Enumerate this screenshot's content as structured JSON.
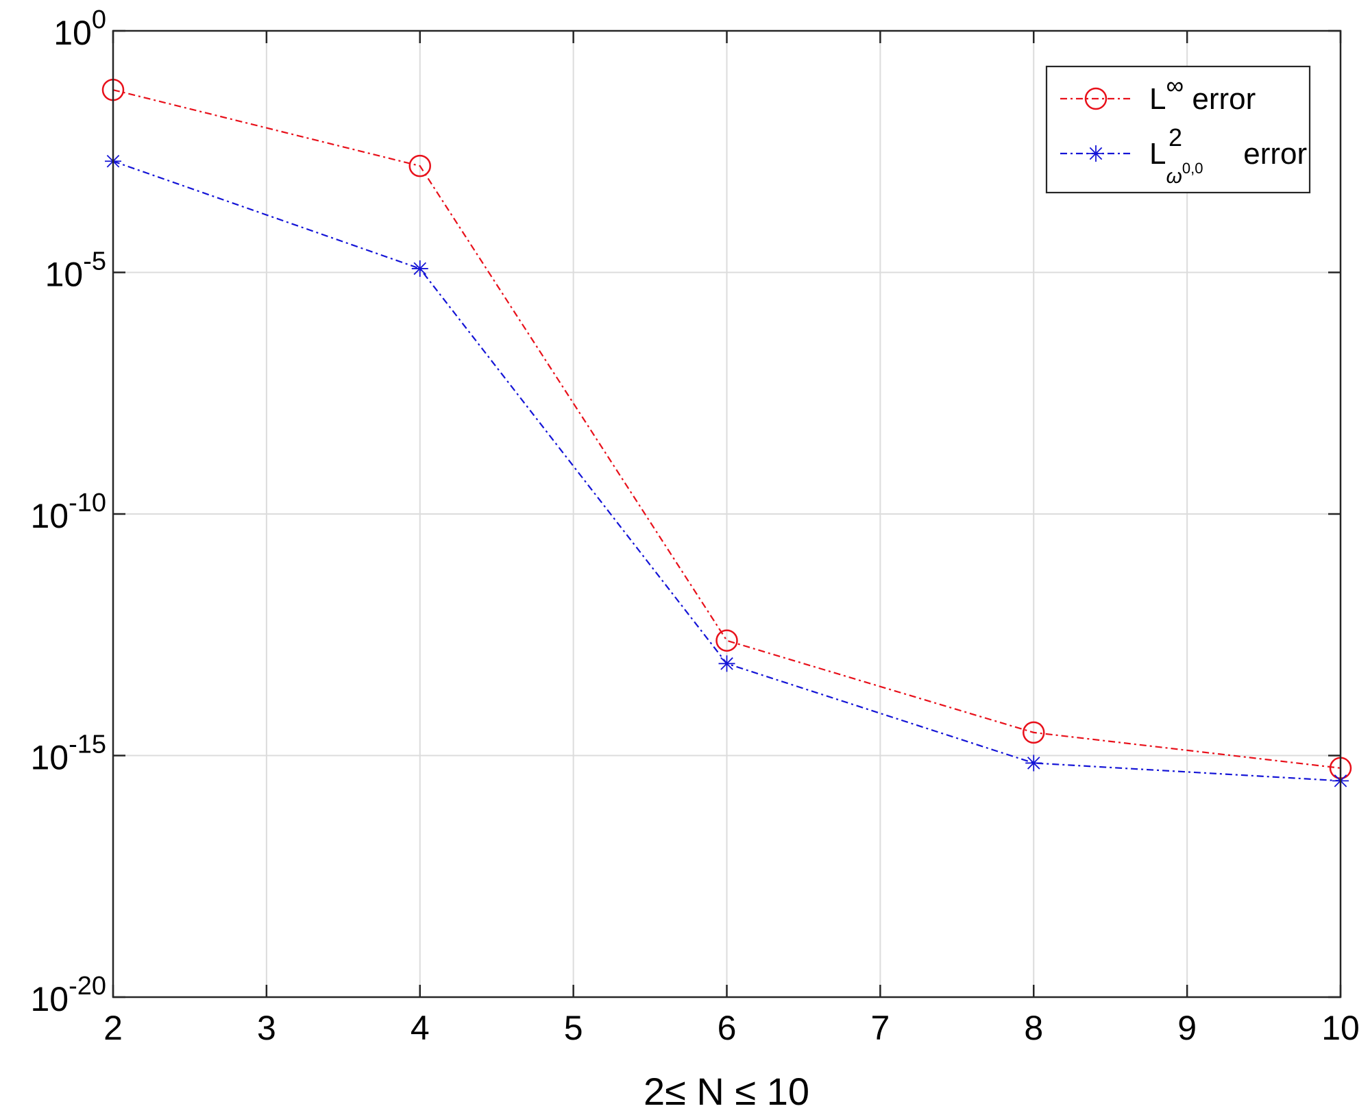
{
  "chart_data": {
    "type": "line",
    "xlabel": "2≤ N ≤ 10",
    "ylabel": "",
    "title": "",
    "x": [
      2,
      4,
      6,
      8,
      10
    ],
    "xlim": [
      2,
      10
    ],
    "xticks": [
      2,
      3,
      4,
      5,
      6,
      7,
      8,
      9,
      10
    ],
    "ylim": [
      1e-20,
      1
    ],
    "yscale": "log",
    "yticks": [
      {
        "value": 1e-20,
        "base": "10",
        "exp": "-20"
      },
      {
        "value": 1e-15,
        "base": "10",
        "exp": "-15"
      },
      {
        "value": 1e-10,
        "base": "10",
        "exp": "-10"
      },
      {
        "value": 1e-05,
        "base": "10",
        "exp": "-5"
      },
      {
        "value": 1,
        "base": "10",
        "exp": "0"
      }
    ],
    "grid": true,
    "legend_position": "top-right",
    "series": [
      {
        "name": "L∞ error",
        "label_main": "L",
        "label_sup": "∞",
        "label_subsup": "",
        "label_tail": " error",
        "color": "#e8101a",
        "marker": "circle",
        "linestyle": "dashdot",
        "values": [
          0.06,
          0.0016,
          2.4e-13,
          3e-15,
          5.5e-16
        ]
      },
      {
        "name": "L2 ω0,0 error",
        "label_main": "L",
        "label_sup": "2",
        "label_sub": "ω",
        "label_subsup": "0,0",
        "label_tail": " error",
        "color": "#1414d6",
        "marker": "star",
        "linestyle": "dashdot",
        "values": [
          0.002,
          1.2e-05,
          8e-14,
          7e-16,
          3e-16
        ]
      }
    ]
  }
}
